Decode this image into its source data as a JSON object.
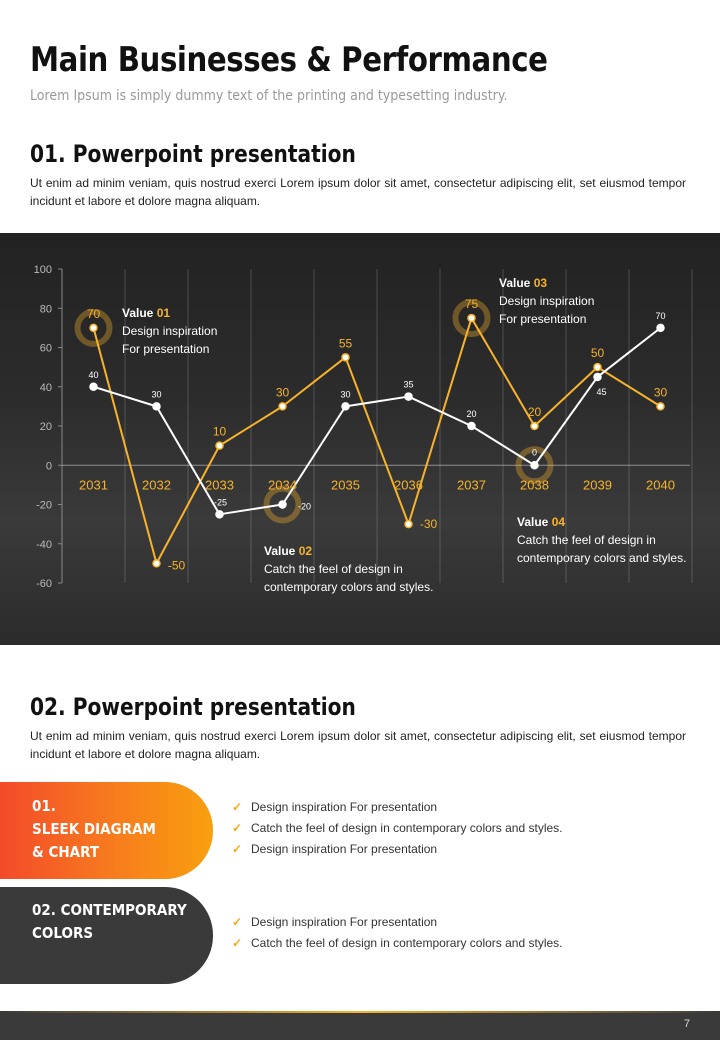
{
  "header": {
    "title": "Main Businesses  & Performance",
    "subtitle": "Lorem Ipsum is simply dummy text of the printing and typesetting industry."
  },
  "section1": {
    "title": "01. Powerpoint presentation",
    "body": "Ut enim ad minim veniam, quis nostrud exerci  Lorem ipsum dolor sit amet, consectetur adipiscing elit, set eiusmod tempor incidunt et labore et dolore magna aliquam."
  },
  "chart_data": {
    "type": "line",
    "x": [
      "2031",
      "2032",
      "2033",
      "2034",
      "2035",
      "2036",
      "2037",
      "2038",
      "2039",
      "2040"
    ],
    "ylim": [
      -60,
      100
    ],
    "yticks": [
      100,
      80,
      60,
      40,
      20,
      0,
      -20,
      -40,
      -60
    ],
    "grid": "vertical",
    "series": [
      {
        "color": "#f7b32b",
        "values": [
          70,
          -50,
          10,
          30,
          55,
          -30,
          75,
          20,
          50,
          30
        ],
        "labels": [
          "70",
          "-50",
          "10",
          "30",
          "55",
          "-30",
          "75",
          "20",
          "50",
          "30"
        ]
      },
      {
        "color": "#ffffff",
        "values": [
          40,
          30,
          -25,
          -20,
          30,
          35,
          20,
          0,
          45,
          70
        ],
        "labels": [
          "40",
          "30",
          "-25",
          "-20",
          "30",
          "35",
          "20",
          "0",
          "45",
          "70"
        ]
      }
    ],
    "callouts": [
      {
        "title": "Value",
        "num": "01",
        "line1": "Design inspiration",
        "line2": "For presentation"
      },
      {
        "title": "Value",
        "num": "02",
        "line1": "Catch the feel of design in",
        "line2": "contemporary colors and styles."
      },
      {
        "title": "Value",
        "num": "03",
        "line1": "Design inspiration",
        "line2": "For presentation"
      },
      {
        "title": "Value",
        "num": "04",
        "line1": "Catch the feel of design in",
        "line2": "contemporary colors and styles."
      }
    ]
  },
  "section2": {
    "title": "02. Powerpoint presentation",
    "body": "Ut enim ad minim veniam, quis nostrud exerci  Lorem ipsum dolor sit amet, consectetur adipiscing elit, set eiusmod tempor incidunt et labore et dolore magna aliquam."
  },
  "features": [
    {
      "line1": "01.",
      "line2": "SLEEK DIAGRAM",
      "line3": "& CHART",
      "items": [
        "Design inspiration For presentation",
        "Catch the feel of design in contemporary colors and styles.",
        "Design inspiration For presentation"
      ]
    },
    {
      "line1": "02. CONTEMPORARY",
      "line2": "COLORS",
      "items": [
        "Design inspiration For presentation",
        "Catch the feel of design in contemporary colors and styles."
      ]
    }
  ],
  "footer": {
    "page_number": "7"
  },
  "icons": {
    "check": "check-icon"
  },
  "colors": {
    "accent": "#f7b32b",
    "dark": "#3a3a3a",
    "gradient_start": "#f34a2a",
    "gradient_end": "#f9a00e"
  }
}
